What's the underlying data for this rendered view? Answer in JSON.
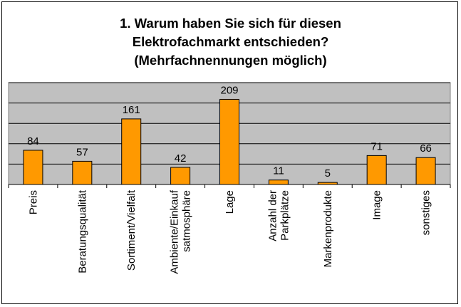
{
  "chart_data": {
    "type": "bar",
    "title_lines": [
      "1. Warum haben Sie sich für diesen",
      "Elektrofachmarkt entschieden?",
      "(Mehrfachnennungen möglich)"
    ],
    "categories": [
      [
        "Preis"
      ],
      [
        "Beratungsqualität"
      ],
      [
        "Sortiment/Vielfalt"
      ],
      [
        "Ambiente/Einkauf",
        "satmosphäre"
      ],
      [
        "Lage"
      ],
      [
        "Anzahl der",
        "Parkplätze"
      ],
      [
        "Markenprodukte"
      ],
      [
        "Image"
      ],
      [
        "sonstiges"
      ]
    ],
    "values": [
      84,
      57,
      161,
      42,
      209,
      11,
      5,
      71,
      66
    ],
    "ylim": [
      0,
      250
    ],
    "grid": true,
    "legend": "none",
    "colors": {
      "bar_fill": "#FF9900",
      "bar_stroke": "#000000",
      "plot_bg": "#C0C0C0",
      "grid": "#000000"
    }
  }
}
